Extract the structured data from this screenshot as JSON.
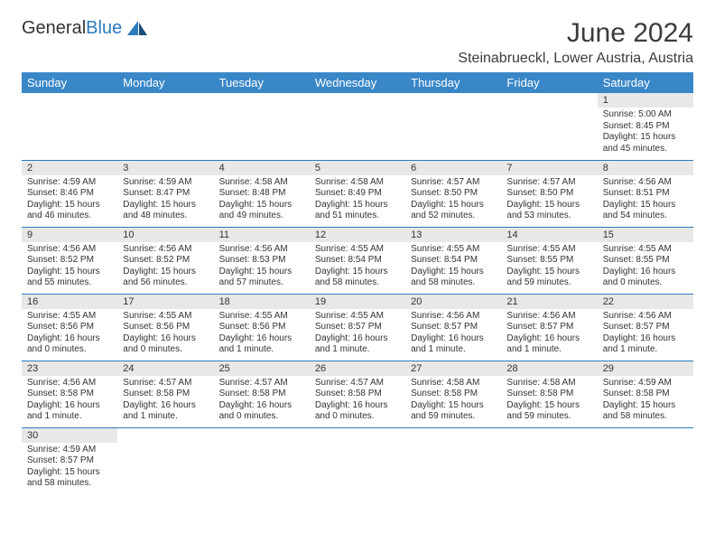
{
  "brand": {
    "name_part1": "General",
    "name_part2": "Blue"
  },
  "title": "June 2024",
  "location": "Steinabrueckl, Lower Austria, Austria",
  "colors": {
    "header_bg": "#3a87c8",
    "header_text": "#ffffff",
    "cell_border": "#2b7bbf",
    "daynum_bg": "#e8e8e8",
    "text": "#333333",
    "brand_accent": "#2b7bbf"
  },
  "weekdays": [
    "Sunday",
    "Monday",
    "Tuesday",
    "Wednesday",
    "Thursday",
    "Friday",
    "Saturday"
  ],
  "weeks": [
    [
      {
        "empty": true
      },
      {
        "empty": true
      },
      {
        "empty": true
      },
      {
        "empty": true
      },
      {
        "empty": true
      },
      {
        "empty": true
      },
      {
        "day": "1",
        "sunrise": "Sunrise: 5:00 AM",
        "sunset": "Sunset: 8:45 PM",
        "daylight": "Daylight: 15 hours and 45 minutes."
      }
    ],
    [
      {
        "day": "2",
        "sunrise": "Sunrise: 4:59 AM",
        "sunset": "Sunset: 8:46 PM",
        "daylight": "Daylight: 15 hours and 46 minutes."
      },
      {
        "day": "3",
        "sunrise": "Sunrise: 4:59 AM",
        "sunset": "Sunset: 8:47 PM",
        "daylight": "Daylight: 15 hours and 48 minutes."
      },
      {
        "day": "4",
        "sunrise": "Sunrise: 4:58 AM",
        "sunset": "Sunset: 8:48 PM",
        "daylight": "Daylight: 15 hours and 49 minutes."
      },
      {
        "day": "5",
        "sunrise": "Sunrise: 4:58 AM",
        "sunset": "Sunset: 8:49 PM",
        "daylight": "Daylight: 15 hours and 51 minutes."
      },
      {
        "day": "6",
        "sunrise": "Sunrise: 4:57 AM",
        "sunset": "Sunset: 8:50 PM",
        "daylight": "Daylight: 15 hours and 52 minutes."
      },
      {
        "day": "7",
        "sunrise": "Sunrise: 4:57 AM",
        "sunset": "Sunset: 8:50 PM",
        "daylight": "Daylight: 15 hours and 53 minutes."
      },
      {
        "day": "8",
        "sunrise": "Sunrise: 4:56 AM",
        "sunset": "Sunset: 8:51 PM",
        "daylight": "Daylight: 15 hours and 54 minutes."
      }
    ],
    [
      {
        "day": "9",
        "sunrise": "Sunrise: 4:56 AM",
        "sunset": "Sunset: 8:52 PM",
        "daylight": "Daylight: 15 hours and 55 minutes."
      },
      {
        "day": "10",
        "sunrise": "Sunrise: 4:56 AM",
        "sunset": "Sunset: 8:52 PM",
        "daylight": "Daylight: 15 hours and 56 minutes."
      },
      {
        "day": "11",
        "sunrise": "Sunrise: 4:56 AM",
        "sunset": "Sunset: 8:53 PM",
        "daylight": "Daylight: 15 hours and 57 minutes."
      },
      {
        "day": "12",
        "sunrise": "Sunrise: 4:55 AM",
        "sunset": "Sunset: 8:54 PM",
        "daylight": "Daylight: 15 hours and 58 minutes."
      },
      {
        "day": "13",
        "sunrise": "Sunrise: 4:55 AM",
        "sunset": "Sunset: 8:54 PM",
        "daylight": "Daylight: 15 hours and 58 minutes."
      },
      {
        "day": "14",
        "sunrise": "Sunrise: 4:55 AM",
        "sunset": "Sunset: 8:55 PM",
        "daylight": "Daylight: 15 hours and 59 minutes."
      },
      {
        "day": "15",
        "sunrise": "Sunrise: 4:55 AM",
        "sunset": "Sunset: 8:55 PM",
        "daylight": "Daylight: 16 hours and 0 minutes."
      }
    ],
    [
      {
        "day": "16",
        "sunrise": "Sunrise: 4:55 AM",
        "sunset": "Sunset: 8:56 PM",
        "daylight": "Daylight: 16 hours and 0 minutes."
      },
      {
        "day": "17",
        "sunrise": "Sunrise: 4:55 AM",
        "sunset": "Sunset: 8:56 PM",
        "daylight": "Daylight: 16 hours and 0 minutes."
      },
      {
        "day": "18",
        "sunrise": "Sunrise: 4:55 AM",
        "sunset": "Sunset: 8:56 PM",
        "daylight": "Daylight: 16 hours and 1 minute."
      },
      {
        "day": "19",
        "sunrise": "Sunrise: 4:55 AM",
        "sunset": "Sunset: 8:57 PM",
        "daylight": "Daylight: 16 hours and 1 minute."
      },
      {
        "day": "20",
        "sunrise": "Sunrise: 4:56 AM",
        "sunset": "Sunset: 8:57 PM",
        "daylight": "Daylight: 16 hours and 1 minute."
      },
      {
        "day": "21",
        "sunrise": "Sunrise: 4:56 AM",
        "sunset": "Sunset: 8:57 PM",
        "daylight": "Daylight: 16 hours and 1 minute."
      },
      {
        "day": "22",
        "sunrise": "Sunrise: 4:56 AM",
        "sunset": "Sunset: 8:57 PM",
        "daylight": "Daylight: 16 hours and 1 minute."
      }
    ],
    [
      {
        "day": "23",
        "sunrise": "Sunrise: 4:56 AM",
        "sunset": "Sunset: 8:58 PM",
        "daylight": "Daylight: 16 hours and 1 minute."
      },
      {
        "day": "24",
        "sunrise": "Sunrise: 4:57 AM",
        "sunset": "Sunset: 8:58 PM",
        "daylight": "Daylight: 16 hours and 1 minute."
      },
      {
        "day": "25",
        "sunrise": "Sunrise: 4:57 AM",
        "sunset": "Sunset: 8:58 PM",
        "daylight": "Daylight: 16 hours and 0 minutes."
      },
      {
        "day": "26",
        "sunrise": "Sunrise: 4:57 AM",
        "sunset": "Sunset: 8:58 PM",
        "daylight": "Daylight: 16 hours and 0 minutes."
      },
      {
        "day": "27",
        "sunrise": "Sunrise: 4:58 AM",
        "sunset": "Sunset: 8:58 PM",
        "daylight": "Daylight: 15 hours and 59 minutes."
      },
      {
        "day": "28",
        "sunrise": "Sunrise: 4:58 AM",
        "sunset": "Sunset: 8:58 PM",
        "daylight": "Daylight: 15 hours and 59 minutes."
      },
      {
        "day": "29",
        "sunrise": "Sunrise: 4:59 AM",
        "sunset": "Sunset: 8:58 PM",
        "daylight": "Daylight: 15 hours and 58 minutes."
      }
    ],
    [
      {
        "day": "30",
        "sunrise": "Sunrise: 4:59 AM",
        "sunset": "Sunset: 8:57 PM",
        "daylight": "Daylight: 15 hours and 58 minutes."
      },
      {
        "empty": true
      },
      {
        "empty": true
      },
      {
        "empty": true
      },
      {
        "empty": true
      },
      {
        "empty": true
      },
      {
        "empty": true
      }
    ]
  ]
}
